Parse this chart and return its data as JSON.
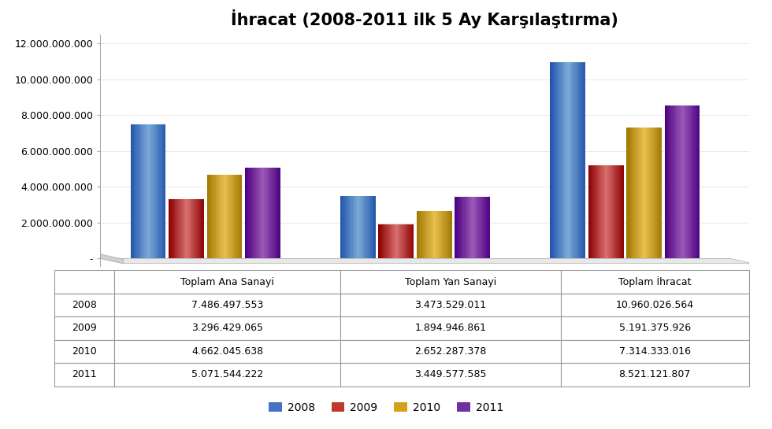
{
  "title": "İhracat (2008-2011 ilk 5 Ay Karşılaştırma)",
  "categories": [
    "Toplam Ana Sanayi",
    "Toplam Yan Sanayi",
    "Toplam İhracat"
  ],
  "years": [
    "2008",
    "2009",
    "2010",
    "2011"
  ],
  "values": {
    "2008": [
      7486497553,
      3473529011,
      10960026564
    ],
    "2009": [
      3296429065,
      1894946861,
      5191375926
    ],
    "2010": [
      4662045638,
      2652287378,
      7314333016
    ],
    "2011": [
      5071544222,
      3449577585,
      8521121807
    ]
  },
  "colors": {
    "2008": "#4472C4",
    "2009": "#C0392B",
    "2010": "#D4A017",
    "2011": "#7030A0"
  },
  "colors_light": {
    "2008": "#7BAAD8",
    "2009": "#D97070",
    "2010": "#E8C050",
    "2011": "#9B59B6"
  },
  "colors_dark": {
    "2008": "#2255AA",
    "2009": "#8B0000",
    "2010": "#A07800",
    "2011": "#4B0080"
  },
  "ylim": [
    0,
    12500000000
  ],
  "yticks": [
    0,
    2000000000,
    4000000000,
    6000000000,
    8000000000,
    10000000000,
    12000000000
  ],
  "ytick_labels": [
    "-",
    "2.000.000.000",
    "4.000.000.000",
    "6.000.000.000",
    "8.000.000.000",
    "10.000.000.000",
    "12.000.000.000"
  ],
  "table_data": {
    "2008": [
      "7.486.497.553",
      "3.473.529.011",
      "10.960.026.564"
    ],
    "2009": [
      "3.296.429.065",
      "1.894.946.861",
      "5.191.375.926"
    ],
    "2010": [
      "4.662.045.638",
      "2.652.287.378",
      "7.314.333.016"
    ],
    "2011": [
      "5.071.544.222",
      "3.449.577.585",
      "8.521.121.807"
    ]
  },
  "background_color": "#FFFFFF",
  "bar_width": 0.2,
  "title_fontsize": 15,
  "axis_fontsize": 9,
  "table_fontsize": 9
}
